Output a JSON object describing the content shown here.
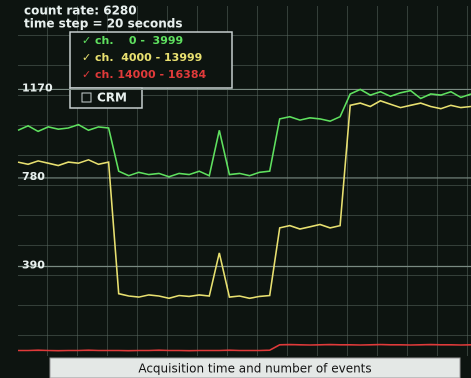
{
  "chart_data": {
    "type": "line",
    "title": "count rate: 6280",
    "subtitle": "time step = 20 seconds",
    "x_label": "Acquisition time and number of events",
    "extra_legend_item": "CRM",
    "ylim": [
      0,
      1520
    ],
    "yticks": [
      390,
      780,
      1170
    ],
    "grid": true,
    "series": [
      {
        "name": "ch.    0 -  3999",
        "color": "#5fe05f",
        "values": [
          990,
          1010,
          985,
          1005,
          995,
          1000,
          1015,
          990,
          1005,
          1000,
          810,
          790,
          805,
          795,
          800,
          785,
          800,
          795,
          810,
          790,
          990,
          795,
          800,
          790,
          805,
          810,
          1040,
          1050,
          1035,
          1045,
          1040,
          1030,
          1050,
          1150,
          1170,
          1145,
          1160,
          1140,
          1155,
          1165,
          1130,
          1150,
          1145,
          1160,
          1135,
          1150
        ]
      },
      {
        "name": "ch.  4000 - 13999",
        "color": "#e8e070",
        "values": [
          850,
          840,
          855,
          845,
          835,
          850,
          845,
          860,
          840,
          850,
          270,
          260,
          255,
          265,
          260,
          250,
          262,
          258,
          265,
          260,
          450,
          255,
          260,
          250,
          258,
          262,
          560,
          570,
          555,
          565,
          575,
          560,
          570,
          1100,
          1110,
          1095,
          1120,
          1105,
          1090,
          1100,
          1110,
          1095,
          1085,
          1100,
          1090,
          1095
        ]
      },
      {
        "name": "ch. 14000 - 16384",
        "color": "#e03a3a",
        "values": [
          20,
          20,
          21,
          20,
          19,
          20,
          20,
          21,
          20,
          20,
          20,
          19,
          20,
          20,
          21,
          20,
          20,
          19,
          20,
          20,
          20,
          21,
          20,
          20,
          20,
          21,
          45,
          46,
          45,
          44,
          45,
          46,
          45,
          45,
          44,
          45,
          46,
          45,
          45,
          44,
          45,
          46,
          45,
          45,
          44,
          45
        ]
      }
    ]
  }
}
